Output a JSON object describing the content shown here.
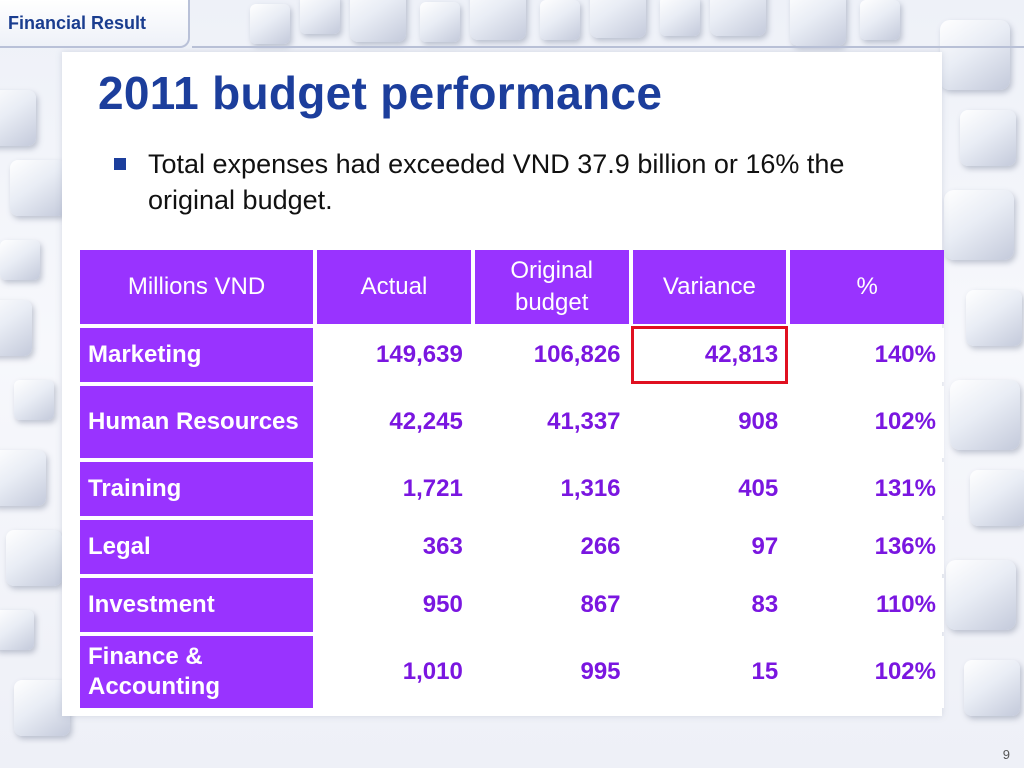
{
  "section_tab": "Financial Result",
  "title": "2011 budget performance",
  "bullet": "Total expenses had exceeded VND 37.9 billion or 16% the original budget.",
  "table": {
    "headers": [
      "Millions VND",
      "Actual",
      "Original budget",
      "Variance",
      "%"
    ],
    "rows": [
      {
        "label": "Marketing",
        "actual": "149,639",
        "original": "106,826",
        "variance": "42,813",
        "pct": "140%"
      },
      {
        "label": "Human Resources",
        "actual": "42,245",
        "original": "41,337",
        "variance": "908",
        "pct": "102%"
      },
      {
        "label": "Training",
        "actual": "1,721",
        "original": "1,316",
        "variance": "405",
        "pct": "131%"
      },
      {
        "label": "Legal",
        "actual": "363",
        "original": "266",
        "variance": "97",
        "pct": "136%"
      },
      {
        "label": "Investment",
        "actual": "950",
        "original": "867",
        "variance": "83",
        "pct": "110%"
      },
      {
        "label": "Finance & Accounting",
        "actual": "1,010",
        "original": "995",
        "variance": "15",
        "pct": "102%"
      }
    ]
  },
  "page_number": "9",
  "colors": {
    "title": "#1c3e9c",
    "header_fill": "#9933ff",
    "value_text": "#7a16e0",
    "highlight_border": "#e01020"
  }
}
